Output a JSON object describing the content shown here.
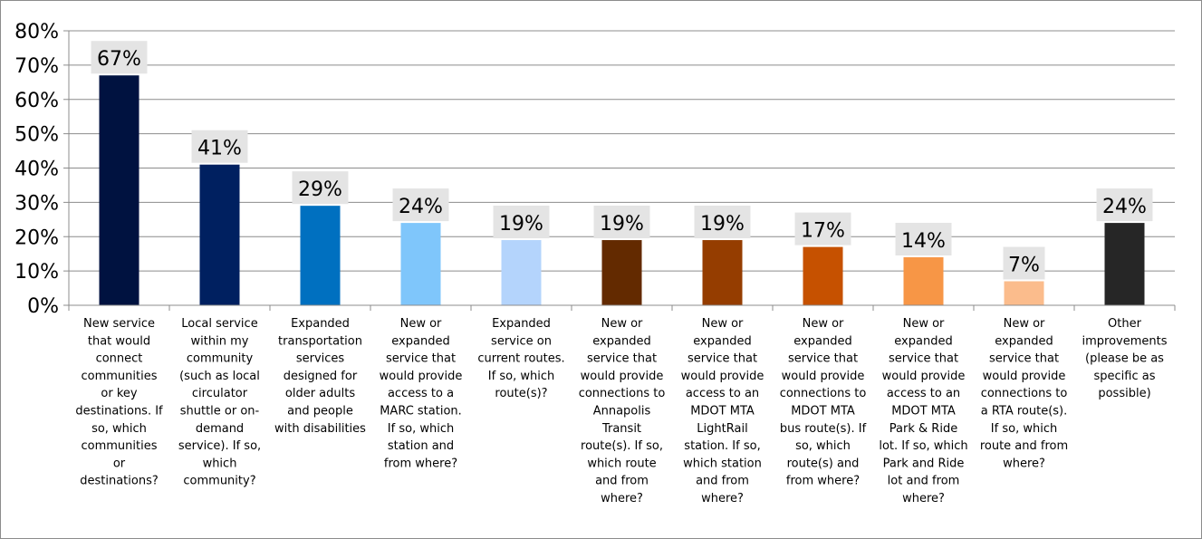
{
  "chart_data": {
    "type": "bar",
    "title": "",
    "xlabel": "",
    "ylabel": "",
    "ylim": [
      0,
      80
    ],
    "yticks": [
      0,
      10,
      20,
      30,
      40,
      50,
      60,
      70,
      80
    ],
    "ytick_labels": [
      "0%",
      "10%",
      "20%",
      "30%",
      "40%",
      "50%",
      "60%",
      "70%",
      "80%"
    ],
    "grid": true,
    "legend": "none",
    "categories": [
      "New service that would connect communities or key destinations. If so, which communities or destinations?",
      "Local service within my community (such as local circulator shuttle or on-demand service). If so, which community?",
      "Expanded transportation services designed for older adults and people with disabilities",
      "New or expanded service that would provide access to a MARC station. If so, which station and from where?",
      "Expanded service on current routes. If so, which route(s)?",
      "New or expanded service that would provide connections to Annapolis Transit route(s). If so, which route and from where?",
      "New or expanded service that would provide access to an MDOT MTA LightRail station. If so, which station and from where?",
      "New or expanded service that would provide connections to MDOT MTA bus route(s). If so, which route(s) and from where?",
      "New or expanded service that would provide access to an MDOT MTA Park & Ride lot. If so, which Park and Ride lot and from where?",
      "New or expanded service that would provide connections to a RTA route(s). If so, which route and from where?",
      "Other improvements (please be as specific as possible)"
    ],
    "category_lines": [
      [
        "New service",
        "that would",
        "connect",
        "communities",
        "or key",
        "destinations. If",
        "so, which",
        "communities",
        "or",
        "destinations?"
      ],
      [
        "Local service",
        "within my",
        "community",
        "(such as local",
        "circulator",
        "shuttle or on-",
        "demand",
        "service). If so,",
        "which",
        "community?"
      ],
      [
        "Expanded",
        "transportation",
        "services",
        "designed for",
        "older adults",
        "and people",
        "with disabilities"
      ],
      [
        "New or",
        "expanded",
        "service that",
        "would provide",
        "access to a",
        "MARC station.",
        "If so, which",
        "station and",
        "from where?"
      ],
      [
        "Expanded",
        "service on",
        "current routes.",
        "If so, which",
        "route(s)?"
      ],
      [
        "New or",
        "expanded",
        "service that",
        "would provide",
        "connections to",
        "Annapolis",
        "Transit",
        "route(s). If so,",
        "which route",
        "and from",
        "where?"
      ],
      [
        "New or",
        "expanded",
        "service that",
        "would provide",
        "access to an",
        "MDOT MTA",
        "LightRail",
        "station. If so,",
        "which station",
        "and from",
        "where?"
      ],
      [
        "New or",
        "expanded",
        "service that",
        "would provide",
        "connections to",
        "MDOT MTA",
        "bus route(s). If",
        "so, which",
        "route(s) and",
        "from where?"
      ],
      [
        "New or",
        "expanded",
        "service that",
        "would provide",
        "access to an",
        "MDOT MTA",
        "Park & Ride",
        "lot. If so, which",
        "Park and Ride",
        "lot and from",
        "where?"
      ],
      [
        "New or",
        "expanded",
        "service that",
        "would provide",
        "connections to",
        "a RTA route(s).",
        "If so, which",
        "route and from",
        "where?"
      ],
      [
        "Other",
        "improvements",
        "(please be as",
        "specific as",
        "possible)"
      ]
    ],
    "values": [
      67,
      41,
      29,
      24,
      19,
      19,
      19,
      17,
      14,
      7,
      24
    ],
    "value_labels": [
      "67%",
      "41%",
      "29%",
      "24%",
      "19%",
      "19%",
      "19%",
      "17%",
      "14%",
      "7%",
      "24%"
    ],
    "colors": [
      "#001240",
      "#002060",
      "#0070c0",
      "#7fc6fb",
      "#b4d4fc",
      "#632a00",
      "#953d00",
      "#c65100",
      "#f79646",
      "#fbbc8c",
      "#262626"
    ],
    "label_box_color": "#e4e4e4"
  }
}
